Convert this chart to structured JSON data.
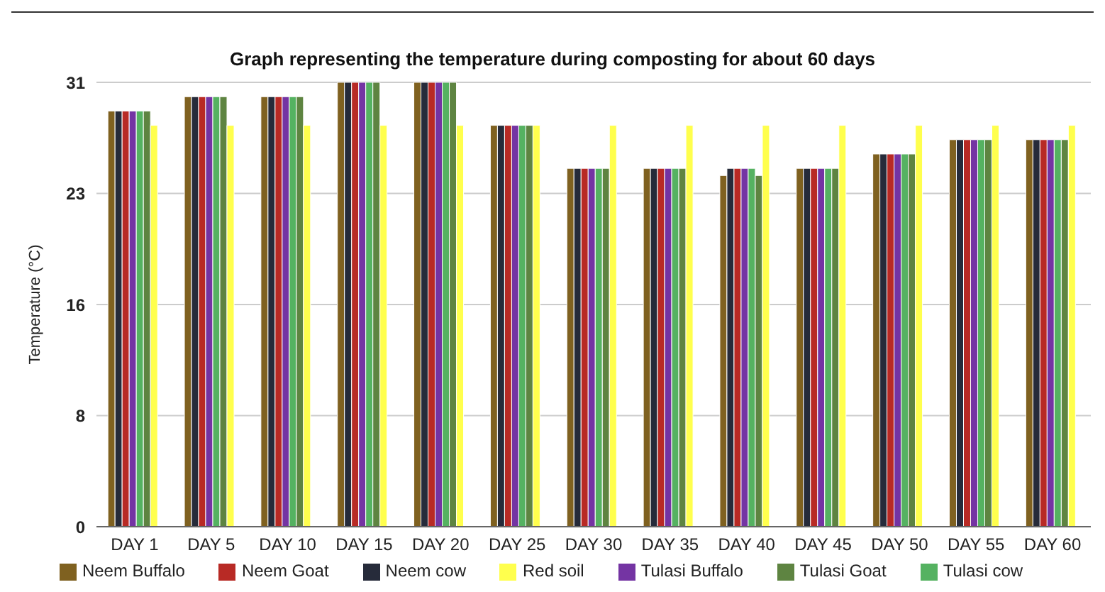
{
  "chart_data": {
    "type": "bar",
    "title": "Graph representing the temperature during composting for about 60 days",
    "ylabel": "Temperature (°C)",
    "categories": [
      "DAY 1",
      "DAY 5",
      "DAY 10",
      "DAY 15",
      "DAY 20",
      "DAY 25",
      "DAY 30",
      "DAY 35",
      "DAY 40",
      "DAY 45",
      "DAY 50",
      "DAY 55",
      "DAY 60"
    ],
    "series": [
      {
        "name": "Neem Buffalo",
        "color": "#7f6120",
        "values": [
          29,
          30,
          30,
          31,
          31,
          28,
          25,
          25,
          24.5,
          25,
          26,
          27,
          27
        ]
      },
      {
        "name": "Neem cow",
        "color": "#262b3a",
        "values": [
          29,
          30,
          30,
          31,
          31,
          28,
          25,
          25,
          25,
          25,
          26,
          27,
          27
        ]
      },
      {
        "name": "Neem Goat",
        "color": "#b82a25",
        "values": [
          29,
          30,
          30,
          31,
          31,
          28,
          25,
          25,
          25,
          25,
          26,
          27,
          27
        ]
      },
      {
        "name": "Tulasi Buffalo",
        "color": "#7434a3",
        "values": [
          29,
          30,
          30,
          31,
          31,
          28,
          25,
          25,
          25,
          25,
          26,
          27,
          27
        ]
      },
      {
        "name": "Tulasi cow",
        "color": "#55b261",
        "values": [
          29,
          30,
          30,
          31,
          31,
          28,
          25,
          25,
          25,
          25,
          26,
          27,
          27
        ]
      },
      {
        "name": "Tulasi Goat",
        "color": "#5e8441",
        "values": [
          29,
          30,
          30,
          31,
          31,
          28,
          25,
          25,
          24.5,
          25,
          26,
          27,
          27
        ]
      },
      {
        "name": "Red soil",
        "color": "#ffff4d",
        "values": [
          28,
          28,
          28,
          28,
          28,
          28,
          28,
          28,
          28,
          28,
          28,
          28,
          28
        ]
      }
    ],
    "ylim": [
      0,
      31
    ],
    "yticks": [
      0,
      {
        "value": 7.75,
        "label": "8"
      },
      {
        "value": 15.5,
        "label": "16"
      },
      {
        "value": 23.25,
        "label": "23"
      },
      31
    ],
    "grid": "y",
    "legend": "bottom"
  }
}
